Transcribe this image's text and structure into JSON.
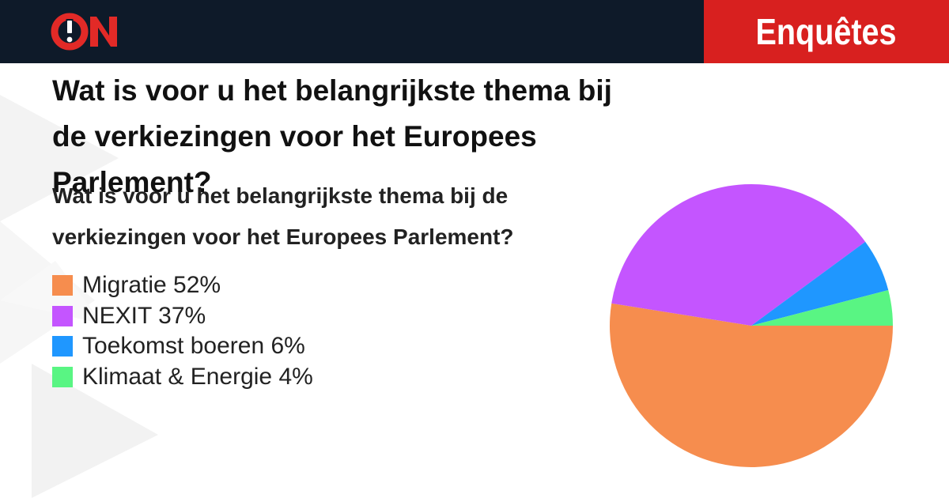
{
  "header": {
    "brand": "ON",
    "section": "Enquêtes"
  },
  "colors": {
    "header_bg": "#0e1a29",
    "accent": "#d8201f"
  },
  "headline": "Wat is voor u het belangrijkste thema bij de verkiezingen voor het Europees Parlement?",
  "chart_data": {
    "type": "pie",
    "title": "Wat is voor u het belangrijkste thema bij de verkiezingen voor het Europees Parlement?",
    "legend_position": "left",
    "slices": [
      {
        "label": "Migratie",
        "value": 52,
        "display": "Migratie 52%",
        "color": "#f68d4e"
      },
      {
        "label": "NEXIT",
        "value": 37,
        "display": "NEXIT 37%",
        "color": "#c455ff"
      },
      {
        "label": "Toekomst boeren",
        "value": 6,
        "display": "Toekomst boeren 6%",
        "color": "#1f97ff"
      },
      {
        "label": "Klimaat & Energie",
        "value": 4,
        "display": "Klimaat & Energie 4%",
        "color": "#59f583"
      }
    ]
  }
}
